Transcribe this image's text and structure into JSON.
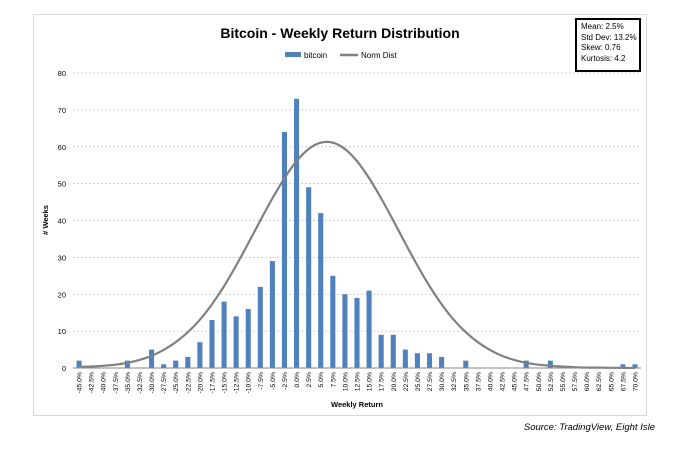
{
  "chart_data": {
    "type": "bar",
    "title": "Bitcoin - Weekly Return Distribution",
    "xlabel": "Weekly Return",
    "ylabel": "# Weeks",
    "ylim": [
      0,
      80
    ],
    "yticks": [
      0,
      10,
      20,
      30,
      40,
      50,
      60,
      70,
      80
    ],
    "grid": true,
    "legend_position": "top",
    "categories": [
      "-45.0%",
      "-42.5%",
      "-40.0%",
      "-37.5%",
      "-35.0%",
      "-32.5%",
      "-30.0%",
      "-27.5%",
      "-25.0%",
      "-22.5%",
      "-20.0%",
      "-17.5%",
      "-15.0%",
      "-12.5%",
      "-10.0%",
      "-7.5%",
      "-5.0%",
      "-2.5%",
      "0.0%",
      "2.5%",
      "5.0%",
      "7.5%",
      "10.0%",
      "12.5%",
      "15.0%",
      "17.5%",
      "20.0%",
      "22.5%",
      "25.0%",
      "27.5%",
      "30.0%",
      "32.5%",
      "35.0%",
      "37.5%",
      "40.0%",
      "42.5%",
      "45.0%",
      "47.5%",
      "50.0%",
      "52.5%",
      "55.0%",
      "57.5%",
      "60.0%",
      "62.5%",
      "65.0%",
      "67.5%",
      "70.0%"
    ],
    "series": [
      {
        "name": "bitcoin",
        "type": "bar",
        "color": "#4f81bd",
        "values": [
          2,
          0,
          0,
          0,
          2,
          0,
          5,
          1,
          2,
          3,
          7,
          13,
          18,
          14,
          16,
          22,
          29,
          64,
          73,
          49,
          42,
          25,
          20,
          19,
          21,
          9,
          9,
          5,
          4,
          4,
          3,
          0,
          2,
          0,
          0,
          0,
          0,
          2,
          0,
          2,
          0,
          0,
          0,
          0,
          0,
          1,
          1
        ]
      },
      {
        "name": "Norm Dist",
        "type": "line",
        "color": "#808080",
        "values": [
          0.3,
          0.4,
          0.6,
          0.9,
          1.4,
          2.2,
          3.3,
          4.9,
          7.0,
          9.7,
          13.1,
          17.3,
          22.2,
          27.8,
          33.8,
          40.0,
          46.0,
          51.5,
          56.1,
          59.4,
          61.1,
          61.1,
          59.4,
          56.1,
          51.5,
          46.0,
          40.0,
          33.8,
          27.8,
          22.2,
          17.3,
          13.1,
          9.7,
          7.0,
          4.9,
          3.3,
          2.2,
          1.4,
          0.9,
          0.6,
          0.4,
          0.2,
          0.1,
          0.1,
          0.05,
          0.02,
          0.01
        ]
      }
    ]
  },
  "stats": {
    "mean": "Mean: 2.5%",
    "std_dev": "Std Dev: 13.2%",
    "skew": "Skew: 0.76",
    "kurtosis": "Kurtosis: 4.2"
  },
  "source_note": "Source: TradingView, Eight Isle"
}
